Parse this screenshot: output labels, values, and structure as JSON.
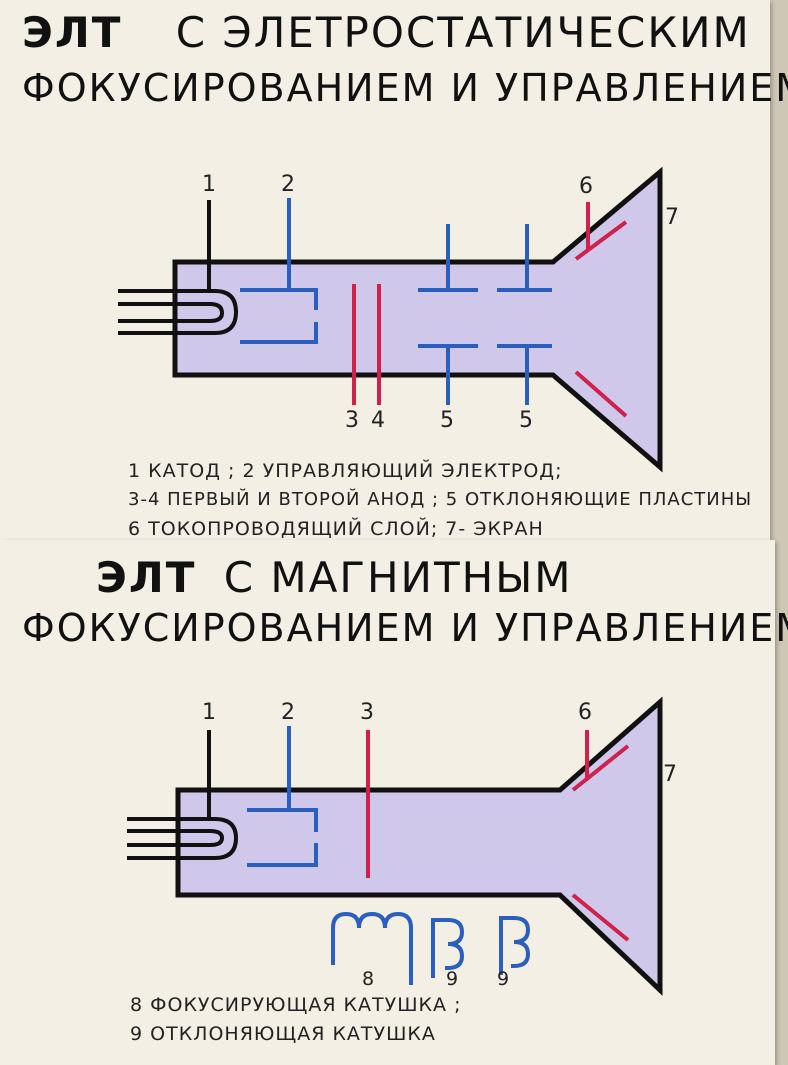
{
  "top": {
    "title_bold": "ЭЛТ",
    "title_rest": "С ЭЛЕТРОСТАТИЧЕСКИМ",
    "title_line2": "ФОКУСИРОВАНИЕМ И УПРАВЛЕНИЕМ",
    "labels": {
      "n1": "1",
      "n2": "2",
      "n3": "3",
      "n4": "4",
      "n5a": "5",
      "n5b": "5",
      "n6": "6",
      "n7": "7"
    },
    "legend": [
      "1 КАТОД ;  2  УПРАВЛЯЮЩИЙ ЭЛЕКТРОД;",
      "3-4 ПЕРВЫЙ И ВТОРОЙ АНОД ; 5  ОТКЛОНЯЮЩИЕ ПЛАСТИНЫ",
      "6 ТОКОПРОВОДЯЩИЙ  СЛОЙ;  7- ЭКРАН"
    ]
  },
  "bottom": {
    "title_bold": "ЭЛТ",
    "title_rest": "С МАГНИТНЫМ",
    "title_line2": "ФОКУСИРОВАНИЕМ И УПРАВЛЕНИЕМ",
    "labels": {
      "n1": "1",
      "n2": "2",
      "n3": "3",
      "n6": "6",
      "n7": "7",
      "n8": "8",
      "n9a": "9",
      "n9b": "9"
    },
    "legend": [
      "8 ФОКУСИРУЮЩАЯ КАТУШКА ;",
      "9 ОТКЛОНЯЮЩАЯ КАТУШКА"
    ]
  },
  "colors": {
    "tube_fill": "#cfc8ea",
    "outline": "#111111",
    "electrode_blue": "#2a5fc0",
    "anode_red": "#d0204c",
    "paper": "#f3efe4"
  }
}
